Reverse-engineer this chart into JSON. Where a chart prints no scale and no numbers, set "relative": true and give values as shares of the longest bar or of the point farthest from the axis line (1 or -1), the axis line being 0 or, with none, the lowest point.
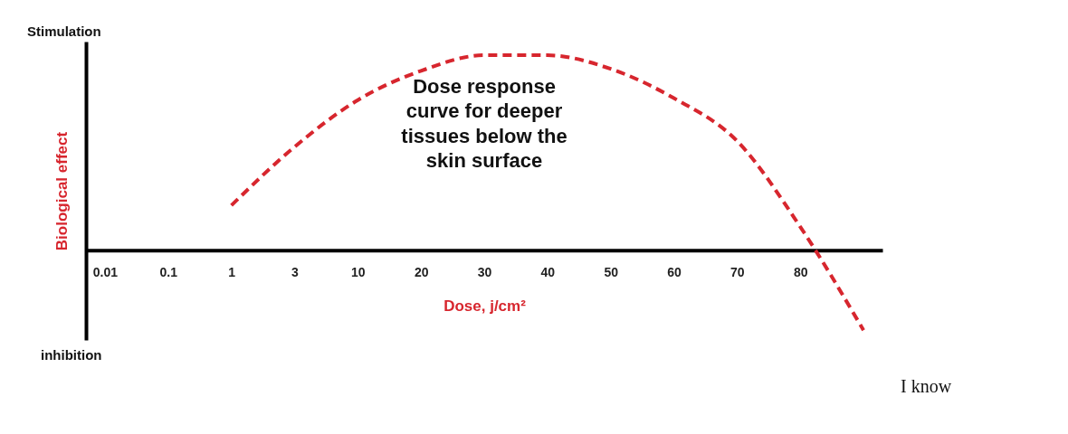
{
  "chart_data": {
    "type": "line",
    "relative": true,
    "line_style": "dashed",
    "xlabel": "Dose, j/cm²",
    "ylabel": "Biological effect",
    "annotations": [
      "Stimulation",
      "inhibition",
      "Dose response\ncurve for deeper\ntissues below the\nskin surface",
      "I know"
    ],
    "categories": [
      "0.01",
      "0.1",
      "1",
      "3",
      "10",
      "20",
      "30",
      "40",
      "50",
      "60",
      "70",
      "80",
      null
    ],
    "series": [
      {
        "color": "#d7262e",
        "values": [
          null,
          null,
          0.23,
          0.53,
          0.77,
          0.92,
          1.0,
          1.0,
          0.93,
          0.78,
          0.56,
          0.12,
          -0.41
        ]
      }
    ]
  }
}
